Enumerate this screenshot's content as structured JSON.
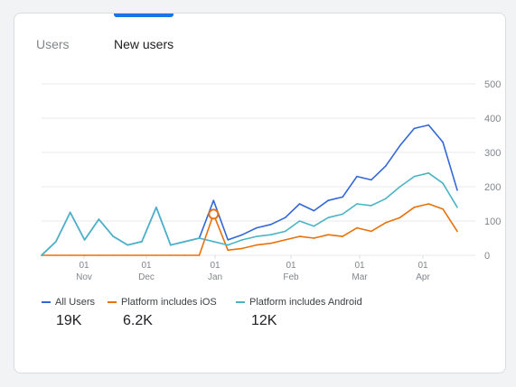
{
  "tabs": [
    {
      "label": "Users"
    },
    {
      "label": "New users"
    }
  ],
  "legend": [
    {
      "label": "All Users",
      "color": "#3367d6",
      "value": "19K"
    },
    {
      "label": "Platform includes iOS",
      "color": "#e8710a",
      "value": "6.2K"
    },
    {
      "label": "Platform includes Android",
      "color": "#4ab4c6",
      "value": "12K"
    }
  ],
  "chart_data": {
    "type": "line",
    "y_ticks": [
      "0",
      "100",
      "200",
      "300",
      "400",
      "500"
    ],
    "ylim": [
      0,
      500
    ],
    "x_ticks": [
      {
        "day": "01",
        "month": "Nov"
      },
      {
        "day": "01",
        "month": "Dec"
      },
      {
        "day": "01",
        "month": "Jan"
      },
      {
        "day": "01",
        "month": "Feb"
      },
      {
        "day": "01",
        "month": "Mar"
      },
      {
        "day": "01",
        "month": "Apr"
      }
    ],
    "grid": true,
    "legend_position": "bottom",
    "x": [
      "Oct 08",
      "Oct 15",
      "Oct 22",
      "Oct 29",
      "Nov 05",
      "Nov 12",
      "Nov 19",
      "Nov 26",
      "Dec 03",
      "Dec 10",
      "Dec 17",
      "Dec 24",
      "Dec 27",
      "Dec 31",
      "Jan 07",
      "Jan 14",
      "Jan 21",
      "Jan 28",
      "Feb 04",
      "Feb 11",
      "Feb 18",
      "Feb 25",
      "Mar 04",
      "Mar 11",
      "Mar 18",
      "Mar 25",
      "Apr 01",
      "Apr 05",
      "Apr 09",
      "Apr 12"
    ],
    "series": [
      {
        "name": "All Users",
        "color": "#3367d6",
        "values": [
          0,
          40,
          125,
          45,
          105,
          55,
          30,
          40,
          140,
          30,
          40,
          50,
          160,
          45,
          60,
          80,
          90,
          110,
          150,
          130,
          160,
          170,
          230,
          220,
          260,
          320,
          370,
          380,
          330,
          190
        ]
      },
      {
        "name": "Platform includes iOS",
        "color": "#e8710a",
        "values": [
          0,
          0,
          0,
          0,
          0,
          0,
          0,
          0,
          0,
          0,
          0,
          0,
          120,
          15,
          20,
          30,
          35,
          45,
          55,
          50,
          60,
          55,
          80,
          70,
          95,
          110,
          140,
          150,
          135,
          70
        ]
      },
      {
        "name": "Platform includes Android",
        "color": "#4ab4c6",
        "values": [
          0,
          40,
          125,
          45,
          105,
          55,
          30,
          40,
          140,
          30,
          40,
          50,
          40,
          30,
          45,
          55,
          60,
          70,
          100,
          85,
          110,
          120,
          150,
          145,
          165,
          200,
          230,
          240,
          210,
          140
        ]
      }
    ],
    "annotation": {
      "x": "Dec 27"
    }
  }
}
